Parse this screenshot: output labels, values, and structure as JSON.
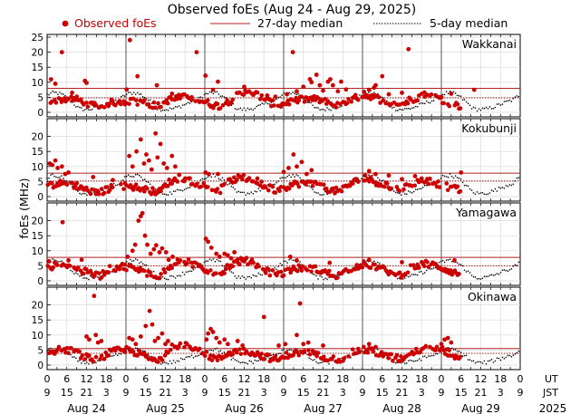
{
  "chart_data": {
    "type": "scatter",
    "title": "Observed foEs (Aug 24 - Aug 29, 2025)",
    "legend": {
      "observed": "Observed foEs",
      "median27": "27-day median",
      "median5": "5-day median",
      "placement": "top"
    },
    "ylabel": "foEs (MHz)",
    "colors": {
      "observed": "#cc0000",
      "median27": "#b22222",
      "median5": "#000000",
      "grid": "#d8d8d8",
      "day_divider": "#555555"
    },
    "x_axis": {
      "ut_label": "UT",
      "jst_label": "JST",
      "ut_ticks": [
        "0",
        "6",
        "12",
        "18",
        "0",
        "6",
        "12",
        "18",
        "0",
        "6",
        "12",
        "18",
        "0",
        "6",
        "12",
        "18",
        "0",
        "6",
        "12",
        "18",
        "0",
        "6",
        "12",
        "18",
        "0"
      ],
      "jst_ticks": [
        "9",
        "15",
        "21",
        "3",
        "9",
        "15",
        "21",
        "3",
        "9",
        "15",
        "21",
        "3",
        "9",
        "15",
        "21",
        "3",
        "9",
        "15",
        "21",
        "3",
        "9",
        "15",
        "21",
        "3",
        "9"
      ],
      "day_labels": [
        "Aug 24",
        "Aug 25",
        "Aug 26",
        "Aug 27",
        "Aug 28",
        "Aug 29"
      ],
      "year_label": "2025",
      "range_hours": [
        0,
        144
      ]
    },
    "panels": [
      {
        "station": "Wakkanai",
        "ylim": [
          0,
          25
        ],
        "yticks": [
          0,
          5,
          10,
          15,
          20,
          25
        ],
        "median27": 8,
        "median5": 4.8,
        "base": [
          3.2,
          3.8,
          4.3,
          4.6,
          4.2,
          3.5,
          2.2,
          1.8,
          3.0,
          3.3,
          3.5,
          3.7,
          3.6,
          3.3,
          2.4,
          2.0,
          4.0,
          4.6,
          5.0,
          4.8,
          4.3,
          3.4,
          2.5,
          2.1,
          3.5,
          5.2,
          6.2,
          6.8,
          5.8,
          4.2,
          2.8,
          2.4,
          3.4,
          3.9,
          4.3,
          4.5,
          4.2,
          3.5,
          2.5,
          2.0,
          3.6,
          4.8,
          5.6,
          5.4,
          4.5,
          3.6,
          2.8,
          2.4,
          3.8,
          4.8,
          5.8,
          5.5,
          4.6,
          3.6,
          2.6,
          2.0
        ],
        "spikes": [
          [
            1.2,
            11.0
          ],
          [
            2.5,
            9.5
          ],
          [
            4.5,
            20
          ],
          [
            7.6,
            6.5
          ],
          [
            11.5,
            10.5
          ],
          [
            12,
            9.8
          ],
          [
            24.2,
            7.6
          ],
          [
            25.2,
            24
          ],
          [
            27.5,
            12
          ],
          [
            33.4,
            9
          ],
          [
            38,
            6.2
          ],
          [
            44,
            5
          ],
          [
            45.5,
            20
          ],
          [
            48.2,
            12.2
          ],
          [
            50.5,
            7.5
          ],
          [
            52,
            10.2
          ],
          [
            60,
            8.5
          ],
          [
            61.5,
            7
          ],
          [
            67,
            5.6
          ],
          [
            69.5,
            5.2
          ],
          [
            73,
            6
          ],
          [
            74.8,
            20
          ],
          [
            76,
            7
          ],
          [
            78,
            8.5
          ],
          [
            80,
            11
          ],
          [
            80.5,
            10
          ],
          [
            82,
            12.5
          ],
          [
            83,
            9
          ],
          [
            84,
            7.2
          ],
          [
            85.5,
            10.2
          ],
          [
            86.2,
            11
          ],
          [
            87,
            9
          ],
          [
            88.5,
            7
          ],
          [
            89.5,
            10.2
          ],
          [
            91,
            7.6
          ],
          [
            96.5,
            6.8
          ],
          [
            98,
            7.5
          ],
          [
            99.5,
            8.2
          ],
          [
            100,
            9
          ],
          [
            102,
            12
          ],
          [
            104,
            6
          ],
          [
            108,
            6.5
          ],
          [
            110,
            21
          ],
          [
            115,
            5.2
          ],
          [
            120,
            5
          ],
          [
            123,
            6.2
          ],
          [
            130,
            7.5
          ]
        ]
      },
      {
        "station": "Kokubunji",
        "ylim": [
          0,
          25
        ],
        "yticks": [
          0,
          5,
          10,
          15,
          20
        ],
        "median27": 7.8,
        "median5": 5.2,
        "base": [
          3.5,
          4.0,
          4.4,
          4.2,
          3.6,
          2.6,
          1.4,
          1.2,
          2.5,
          3.2,
          3.6,
          3.4,
          3.0,
          2.6,
          1.8,
          1.6,
          4.5,
          5.5,
          6.0,
          5.2,
          4.4,
          3.4,
          2.4,
          2.2,
          4.6,
          5.8,
          6.2,
          5.7,
          4.5,
          3.4,
          2.4,
          2.0,
          3.6,
          4.2,
          4.5,
          4.3,
          3.6,
          2.8,
          2.0,
          1.8,
          3.8,
          5.0,
          5.8,
          5.5,
          4.6,
          3.6,
          2.6,
          2.2,
          3.8,
          4.8,
          5.6,
          5.0,
          4.2,
          3.4,
          2.6,
          2.2
        ],
        "spikes": [
          [
            0.8,
            11
          ],
          [
            1.6,
            10.5
          ],
          [
            2.5,
            12
          ],
          [
            3.2,
            9.5
          ],
          [
            4.5,
            10
          ],
          [
            5.5,
            7.5
          ],
          [
            6.5,
            8
          ],
          [
            14,
            6.5
          ],
          [
            20,
            5.5
          ],
          [
            25,
            13.5
          ],
          [
            26,
            10
          ],
          [
            27.2,
            15
          ],
          [
            28.5,
            19
          ],
          [
            29.5,
            11
          ],
          [
            30.2,
            14
          ],
          [
            31,
            12
          ],
          [
            31.8,
            9
          ],
          [
            33,
            21
          ],
          [
            33.6,
            13
          ],
          [
            34.5,
            17.5
          ],
          [
            35.5,
            11
          ],
          [
            36.5,
            9.5
          ],
          [
            38,
            13.5
          ],
          [
            39,
            10
          ],
          [
            40.2,
            7.2
          ],
          [
            42,
            6
          ],
          [
            48.2,
            8
          ],
          [
            49.2,
            7.5
          ],
          [
            52,
            7.5
          ],
          [
            61,
            5.6
          ],
          [
            64,
            6
          ],
          [
            72,
            8.2
          ],
          [
            73.5,
            9.5
          ],
          [
            75,
            14
          ],
          [
            76,
            10
          ],
          [
            77.5,
            11.5
          ],
          [
            79,
            7.5
          ],
          [
            80.5,
            8.8
          ],
          [
            96.8,
            7
          ],
          [
            98,
            8.5
          ],
          [
            100,
            7.5
          ],
          [
            104,
            7
          ],
          [
            108,
            5.8
          ],
          [
            112,
            6.8
          ],
          [
            114,
            6
          ],
          [
            126,
            8
          ]
        ]
      },
      {
        "station": "Yamagawa",
        "ylim": [
          0,
          25
        ],
        "yticks": [
          0,
          5,
          10,
          15,
          20
        ],
        "median27": 7.8,
        "median5": 5.0,
        "base": [
          4.2,
          5.0,
          5.5,
          5.0,
          4.0,
          3.0,
          2.0,
          1.6,
          3.6,
          4.3,
          4.8,
          4.5,
          3.8,
          3.0,
          2.0,
          1.7,
          4.6,
          5.8,
          6.5,
          6.0,
          5.0,
          3.8,
          2.6,
          2.2,
          4.8,
          6.0,
          6.8,
          6.3,
          4.8,
          3.6,
          2.4,
          2.0,
          3.5,
          4.0,
          4.4,
          4.2,
          3.6,
          2.8,
          2.0,
          1.8,
          3.8,
          4.8,
          5.5,
          5.2,
          4.4,
          3.5,
          2.5,
          2.1,
          3.8,
          4.8,
          5.6,
          5.6,
          4.8,
          3.8,
          2.8,
          2.2
        ],
        "spikes": [
          [
            0.6,
            6.5
          ],
          [
            4.7,
            19.5
          ],
          [
            6.5,
            6.8
          ],
          [
            10.5,
            7
          ],
          [
            24.5,
            8
          ],
          [
            26,
            10
          ],
          [
            26.8,
            12
          ],
          [
            27.8,
            20
          ],
          [
            28.5,
            21.5
          ],
          [
            29,
            22.5
          ],
          [
            29.8,
            15
          ],
          [
            30.5,
            12
          ],
          [
            31.5,
            9
          ],
          [
            32.5,
            10.5
          ],
          [
            33.2,
            11.8
          ],
          [
            34.2,
            9.5
          ],
          [
            35,
            10.8
          ],
          [
            36.2,
            9.5
          ],
          [
            37,
            7
          ],
          [
            38.2,
            8
          ],
          [
            48.3,
            14
          ],
          [
            49,
            13
          ],
          [
            50,
            11
          ],
          [
            51.5,
            9
          ],
          [
            52.5,
            8
          ],
          [
            54,
            9
          ],
          [
            55,
            8.5
          ],
          [
            56,
            7.5
          ],
          [
            57,
            9.5
          ],
          [
            58,
            7
          ],
          [
            60,
            6.5
          ],
          [
            62,
            6
          ],
          [
            74,
            8
          ],
          [
            76,
            6.8
          ],
          [
            86,
            6
          ],
          [
            98,
            7
          ],
          [
            108,
            6.2
          ],
          [
            124,
            6.8
          ]
        ]
      },
      {
        "station": "Okinawa",
        "ylim": [
          0,
          25
        ],
        "yticks": [
          0,
          5,
          10,
          15,
          20
        ],
        "median27": 5.5,
        "median5": 3.9,
        "base": [
          4.2,
          4.8,
          5.2,
          4.8,
          3.8,
          2.8,
          1.8,
          1.5,
          3.8,
          4.6,
          5.0,
          4.8,
          4.0,
          3.0,
          2.0,
          1.7,
          5.0,
          6.4,
          7.2,
          6.5,
          5.0,
          3.6,
          2.4,
          2.0,
          4.0,
          4.5,
          4.7,
          4.4,
          3.6,
          2.8,
          2.0,
          1.8,
          3.5,
          4.0,
          4.3,
          4.1,
          3.5,
          2.7,
          2.0,
          1.8,
          3.6,
          4.5,
          5.0,
          4.7,
          4.0,
          3.2,
          2.4,
          2.0,
          3.8,
          4.6,
          5.5,
          6.0,
          5.8,
          4.6,
          3.0,
          2.2
        ],
        "spikes": [
          [
            12,
            9.5
          ],
          [
            12.8,
            8.5
          ],
          [
            14.3,
            23
          ],
          [
            14.8,
            10
          ],
          [
            15.5,
            7.5
          ],
          [
            16.5,
            8
          ],
          [
            25,
            9
          ],
          [
            26,
            8.5
          ],
          [
            27,
            7
          ],
          [
            28.5,
            9.5
          ],
          [
            30,
            13
          ],
          [
            31.2,
            18
          ],
          [
            32,
            13.5
          ],
          [
            32.8,
            8
          ],
          [
            33.8,
            9
          ],
          [
            35,
            10.5
          ],
          [
            36,
            7
          ],
          [
            36.8,
            8
          ],
          [
            48.5,
            8.5
          ],
          [
            49,
            10.5
          ],
          [
            49.8,
            12
          ],
          [
            50.5,
            11
          ],
          [
            51.5,
            9
          ],
          [
            52.5,
            7.5
          ],
          [
            54,
            8.5
          ],
          [
            55,
            7
          ],
          [
            58,
            8
          ],
          [
            59.5,
            6.5
          ],
          [
            66,
            16
          ],
          [
            70.5,
            6.5
          ],
          [
            72.5,
            7
          ],
          [
            76,
            10
          ],
          [
            77,
            20.5
          ],
          [
            78,
            7
          ],
          [
            79.5,
            7.5
          ],
          [
            84,
            6.5
          ],
          [
            98,
            7
          ],
          [
            100,
            6
          ],
          [
            120,
            7
          ],
          [
            121,
            8.5
          ],
          [
            122,
            9
          ],
          [
            123,
            7.5
          ]
        ]
      }
    ]
  }
}
